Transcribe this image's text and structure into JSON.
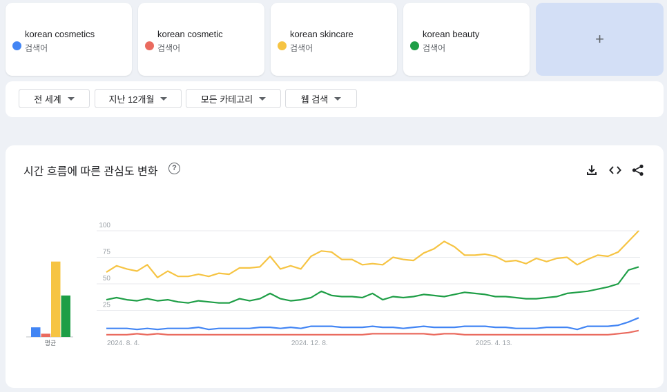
{
  "terms": [
    {
      "name": "korean cosmetics",
      "type": "검색어",
      "color": "#4285f4"
    },
    {
      "name": "korean cosmetic",
      "type": "검색어",
      "color": "#ea6b5f"
    },
    {
      "name": "korean skincare",
      "type": "검색어",
      "color": "#f6c443"
    },
    {
      "name": "korean beauty",
      "type": "검색어",
      "color": "#1e9e46"
    }
  ],
  "add_button": {
    "label": "+"
  },
  "filters": {
    "region": "전 세계",
    "period": "지난 12개월",
    "category": "모든 카테고리",
    "search_type": "웹 검색"
  },
  "main": {
    "title": "시간 흐름에 따른 관심도 변화",
    "help": "?",
    "icons": [
      "download-icon",
      "embed-icon",
      "share-icon"
    ]
  },
  "chart_data": {
    "type": "line",
    "ylim": [
      0,
      100
    ],
    "yticks": [
      "25",
      "50",
      "75",
      "100"
    ],
    "xticks": [
      {
        "index": 0,
        "label": "2024. 8. 4."
      },
      {
        "index": 18,
        "label": "2024. 12. 8."
      },
      {
        "index": 36,
        "label": "2025. 4. 13."
      }
    ],
    "avg_label": "평균",
    "averages": [
      9,
      3,
      71,
      39
    ],
    "series": [
      {
        "name": "korean cosmetics",
        "color": "#4285f4",
        "values": [
          8,
          8,
          8,
          7,
          8,
          7,
          8,
          8,
          8,
          9,
          7,
          8,
          8,
          8,
          8,
          9,
          9,
          8,
          9,
          8,
          10,
          10,
          10,
          9,
          9,
          9,
          10,
          9,
          9,
          8,
          9,
          10,
          9,
          9,
          9,
          10,
          10,
          10,
          9,
          9,
          8,
          8,
          8,
          9,
          9,
          9,
          7,
          10,
          10,
          10,
          11,
          14,
          18
        ]
      },
      {
        "name": "korean cosmetic",
        "color": "#ea6b5f",
        "values": [
          2,
          2,
          2,
          3,
          2,
          3,
          2,
          2,
          2,
          2,
          2,
          2,
          2,
          2,
          2,
          2,
          2,
          2,
          2,
          2,
          2,
          2,
          2,
          2,
          2,
          2,
          3,
          3,
          3,
          3,
          3,
          3,
          2,
          3,
          3,
          2,
          2,
          2,
          2,
          2,
          2,
          2,
          2,
          2,
          2,
          2,
          2,
          2,
          2,
          2,
          3,
          4,
          6
        ]
      },
      {
        "name": "korean skincare",
        "color": "#f6c443",
        "values": [
          61,
          67,
          64,
          62,
          68,
          56,
          62,
          57,
          57,
          59,
          57,
          60,
          59,
          65,
          65,
          66,
          76,
          64,
          67,
          64,
          76,
          81,
          80,
          73,
          73,
          68,
          69,
          68,
          75,
          73,
          72,
          79,
          83,
          90,
          85,
          77,
          77,
          78,
          76,
          71,
          72,
          69,
          74,
          71,
          74,
          75,
          68,
          73,
          77,
          76,
          80,
          90,
          100
        ]
      },
      {
        "name": "korean beauty",
        "color": "#1e9e46",
        "values": [
          35,
          37,
          35,
          34,
          36,
          34,
          35,
          33,
          32,
          34,
          33,
          32,
          32,
          36,
          34,
          36,
          41,
          36,
          34,
          35,
          37,
          43,
          39,
          38,
          38,
          37,
          41,
          35,
          38,
          37,
          38,
          40,
          39,
          38,
          40,
          42,
          41,
          40,
          38,
          38,
          37,
          36,
          36,
          37,
          38,
          41,
          42,
          43,
          45,
          47,
          50,
          63,
          66
        ]
      }
    ]
  }
}
